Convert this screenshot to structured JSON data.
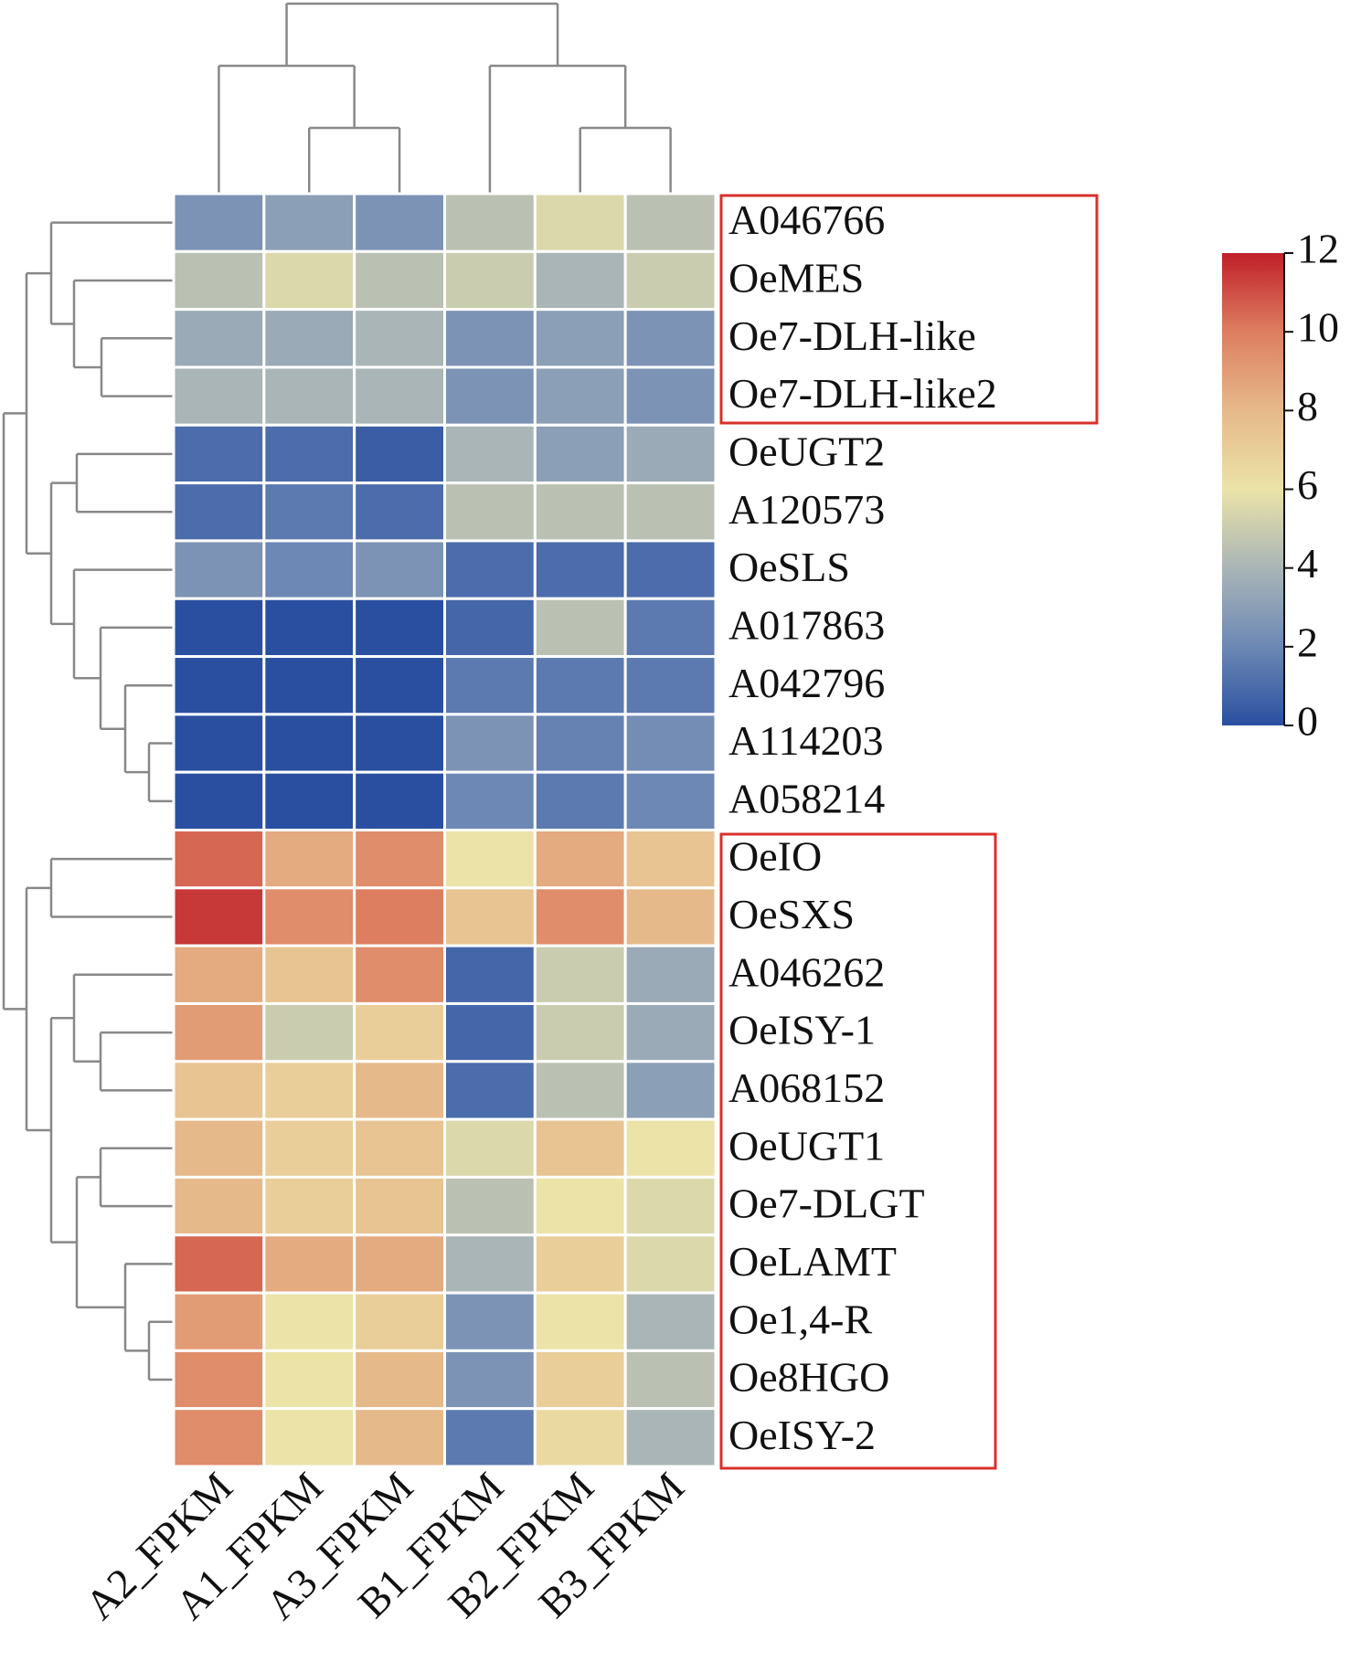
{
  "chart_data": {
    "type": "heatmap",
    "columns": [
      "A2_FPKM",
      "A1_FPKM",
      "A3_FPKM",
      "B1_FPKM",
      "B2_FPKM",
      "B3_FPKM"
    ],
    "rows": [
      "A046766",
      "OeMES",
      "Oe7-DLH-like",
      "Oe7-DLH-like2",
      "OeUGT2",
      "A120573",
      "OeSLS",
      "A017863",
      "A042796",
      "A114203",
      "A058214",
      "OeIO",
      "OeSXS",
      "A046262",
      "OeISY-1",
      "A068152",
      "OeUGT1",
      "Oe7-DLGT",
      "OeLAMT",
      "Oe1,4-R",
      "Oe8HGO",
      "OeISY-2"
    ],
    "values": [
      [
        2.5,
        3,
        2.5,
        4.5,
        5.5,
        4.5
      ],
      [
        4.5,
        5.5,
        4.5,
        5,
        4,
        5
      ],
      [
        3.5,
        3.5,
        4,
        2.5,
        3,
        2.5
      ],
      [
        4,
        4,
        4,
        2.5,
        3,
        2.5
      ],
      [
        1,
        1,
        0.5,
        4,
        3,
        3.5
      ],
      [
        1,
        1.5,
        1,
        4.5,
        4.5,
        4.5
      ],
      [
        2.5,
        2,
        2.5,
        1,
        1,
        1
      ],
      [
        0,
        0,
        0,
        0.8,
        4.5,
        1.5
      ],
      [
        0,
        0,
        0,
        1.5,
        1.5,
        1.5
      ],
      [
        0,
        0,
        0,
        2.5,
        1.8,
        2.2
      ],
      [
        0,
        0,
        0,
        2,
        1.5,
        2
      ],
      [
        10.5,
        8.5,
        9.5,
        6,
        8.5,
        7.5
      ],
      [
        11.5,
        9.5,
        10,
        7.5,
        9.5,
        8
      ],
      [
        8.5,
        7.5,
        9.5,
        0.8,
        5,
        3.5
      ],
      [
        9,
        5,
        7,
        0.8,
        5,
        3.5
      ],
      [
        7.5,
        7,
        8,
        1,
        4.5,
        3
      ],
      [
        8,
        7,
        7.5,
        5.5,
        7.5,
        6
      ],
      [
        8,
        7,
        7.5,
        4.5,
        6,
        5.5
      ],
      [
        10.5,
        8.5,
        8.5,
        4,
        7,
        5.5
      ],
      [
        9,
        6,
        7,
        2.5,
        6,
        4
      ],
      [
        9.5,
        6,
        8,
        2.5,
        7,
        4.5
      ],
      [
        9.5,
        6,
        8,
        1.5,
        6.5,
        4
      ]
    ],
    "zlim": [
      0,
      12
    ],
    "zticks": [
      0,
      2,
      4,
      6,
      8,
      10,
      12
    ],
    "colorscale": [
      "#2a4fa0",
      "#6d88b5",
      "#a9b5b6",
      "#ebe3a8",
      "#e6b98a",
      "#dd7e60",
      "#c0202a"
    ]
  }
}
